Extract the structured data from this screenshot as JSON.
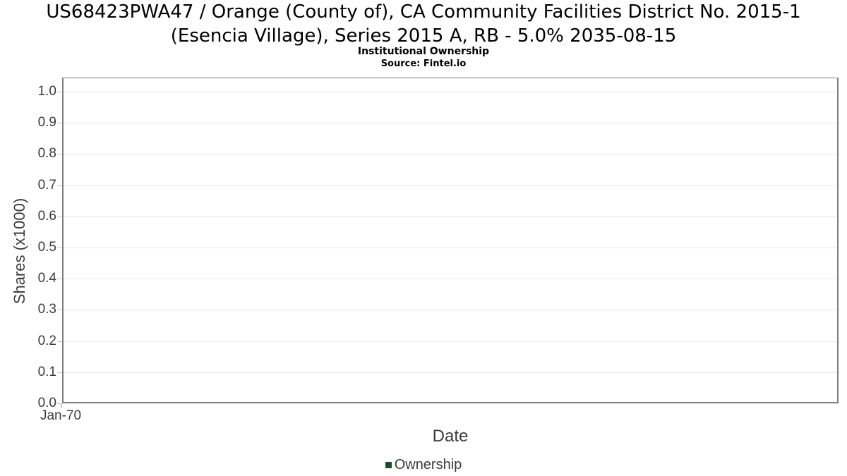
{
  "title": {
    "line1": "US68423PWA47 / Orange (County of), CA Community Facilities District No. 2015-1",
    "line2": "(Esencia Village), Series 2015 A, RB - 5.0% 2035-08-15"
  },
  "subtitle": "Institutional Ownership",
  "source": "Source: Fintel.io",
  "chart_data": {
    "type": "line",
    "title": "US68423PWA47 / Orange (County of), CA Community Facilities District No. 2015-1 (Esencia Village), Series 2015 A, RB - 5.0% 2035-08-15",
    "subtitle": "Institutional Ownership",
    "source_note": "Source: Fintel.io",
    "xlabel": "Date",
    "ylabel": "Shares (x1000)",
    "x_tick_labels": [
      "Jan-70"
    ],
    "y_tick_labels": [
      "0.0",
      "0.1",
      "0.2",
      "0.3",
      "0.4",
      "0.5",
      "0.6",
      "0.7",
      "0.8",
      "0.9",
      "1.0"
    ],
    "ylim": [
      0,
      1.045
    ],
    "grid": true,
    "legend_position": "bottom",
    "series": [
      {
        "name": "Ownership",
        "color": "#1d4a2a",
        "x": [],
        "y": []
      }
    ]
  },
  "legend": {
    "items": [
      {
        "label": "Ownership",
        "color": "#1d4a2a",
        "marker": "square"
      }
    ]
  },
  "colors": {
    "accent_green": "#1d4a2a",
    "grid_line": "#e7e7e7",
    "axis_border": "#7e7e7e",
    "tick_mark": "#c4c4c4",
    "text_dark": "#3b3b3b",
    "title_text": "#000000"
  }
}
